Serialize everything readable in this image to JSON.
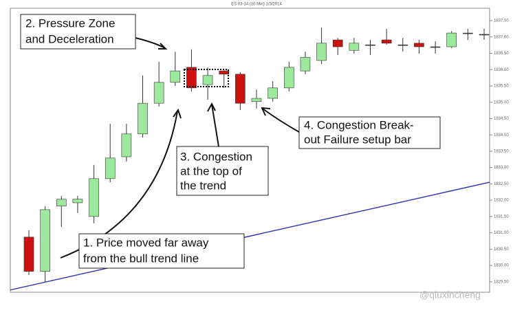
{
  "chart_data": {
    "type": "candlestick",
    "title": "ES 03-14 (10 Min) 1/3/2014",
    "up_color": "#9ee89e",
    "down_color": "#cc1111",
    "open": [
      1830.87,
      1829.82,
      1831.82,
      1831.92,
      1831.5,
      1832.66,
      1833.33,
      1834.03,
      1834.97,
      1835.61,
      1836.07,
      1835.54,
      1835.96,
      1835.86,
      1835.02,
      1835.12,
      1835.44,
      1835.96,
      1836.28,
      1836.91,
      1836.59,
      1836.76,
      1836.91,
      1836.76,
      1836.81,
      1836.7,
      1836.7,
      1837.12,
      1837.08
    ],
    "high": [
      1831.08,
      1831.82,
      1832.13,
      1832.13,
      1833.08,
      1834.34,
      1834.34,
      1835.82,
      1836.24,
      1836.55,
      1836.62,
      1836.07,
      1836.03,
      1835.92,
      1835.39,
      1835.65,
      1836.24,
      1836.55,
      1837.29,
      1836.97,
      1836.97,
      1836.91,
      1837.25,
      1836.97,
      1836.91,
      1836.87,
      1837.18,
      1837.25,
      1837.25
    ],
    "low": [
      1829.71,
      1829.5,
      1831.18,
      1831.61,
      1831.29,
      1832.55,
      1833.18,
      1833.92,
      1834.87,
      1835.5,
      1835.33,
      1835.08,
      1835.44,
      1834.76,
      1834.81,
      1835.02,
      1835.33,
      1835.86,
      1836.17,
      1836.45,
      1836.49,
      1836.45,
      1836.76,
      1836.55,
      1836.49,
      1836.49,
      1836.66,
      1836.91,
      1836.91
    ],
    "close": [
      1829.82,
      1831.71,
      1832.03,
      1832.03,
      1832.66,
      1833.29,
      1834.03,
      1834.97,
      1835.61,
      1835.96,
      1835.44,
      1835.82,
      1835.86,
      1834.97,
      1835.12,
      1835.44,
      1836.07,
      1836.38,
      1836.81,
      1836.7,
      1836.81,
      1836.76,
      1836.81,
      1836.76,
      1836.7,
      1836.7,
      1837.12,
      1837.12,
      1837.08
    ],
    "ylim": [
      1829.18,
      1837.88
    ],
    "yticks": [
      {
        "value": 1829.5,
        "label": "1829.50"
      },
      {
        "value": 1830,
        "label": "1830.00"
      },
      {
        "value": 1830.5,
        "label": "1830.50"
      },
      {
        "value": 1831,
        "label": "1831.00"
      },
      {
        "value": 1831.5,
        "label": "1831.50"
      },
      {
        "value": 1832,
        "label": "1832.00"
      },
      {
        "value": 1832.5,
        "label": "1832.50"
      },
      {
        "value": 1833,
        "label": "1833.00"
      },
      {
        "value": 1833.5,
        "label": "1833.50"
      },
      {
        "value": 1834,
        "label": "1834.00"
      },
      {
        "value": 1834.5,
        "label": "1834.50"
      },
      {
        "value": 1835,
        "label": "1835.00"
      },
      {
        "value": 1835.5,
        "label": "1835.50"
      },
      {
        "value": 1836,
        "label": "1836.00"
      },
      {
        "value": 1836.5,
        "label": "1836.50"
      },
      {
        "value": 1837,
        "label": "1837.00"
      },
      {
        "value": 1837.5,
        "label": "1837.50"
      }
    ],
    "trend_line": {
      "color": "#3b3bb0",
      "values": [
        1829.25,
        1832.55
      ]
    },
    "annotations": [
      {
        "lines": [
          "2. Pressure Zone",
          "and Deceleration"
        ]
      },
      {
        "lines": [
          "3. Congestion",
          "at the top of",
          "the trend"
        ]
      },
      {
        "lines": [
          "4. Congestion Break-",
          "out Failure setup bar"
        ]
      },
      {
        "lines": [
          "1. Price moved far away",
          "from the bull trend line"
        ]
      }
    ],
    "watermark": "@qiuxincheng"
  }
}
